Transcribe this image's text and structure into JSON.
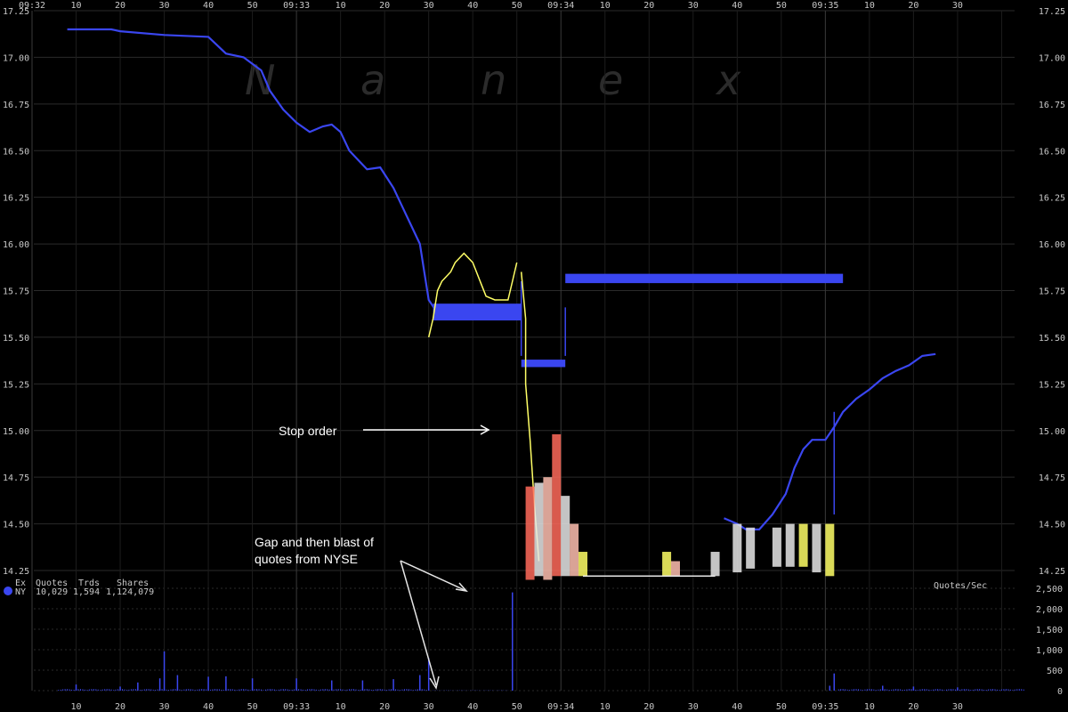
{
  "chart_data": {
    "type": "line",
    "watermark": [
      "N",
      "a",
      "n",
      "e",
      "x"
    ],
    "time_axis": {
      "top_labels": [
        "09:32",
        "10",
        "20",
        "30",
        "40",
        "50",
        "09:33",
        "10",
        "20",
        "30",
        "40",
        "50",
        "09:34",
        "10",
        "20",
        "30",
        "40",
        "50",
        "09:35",
        "10",
        "20",
        "30"
      ],
      "bottom_labels": [
        "10",
        "20",
        "30",
        "40",
        "50",
        "09:33",
        "10",
        "20",
        "30",
        "40",
        "50",
        "09:34",
        "10",
        "20",
        "30",
        "40",
        "50",
        "09:35",
        "10",
        "20",
        "30"
      ]
    },
    "price_axis": {
      "ticks": [
        "17.25",
        "17.00",
        "16.75",
        "16.50",
        "16.25",
        "16.00",
        "15.75",
        "15.50",
        "15.25",
        "15.00",
        "14.75",
        "14.50",
        "14.25"
      ],
      "ylim": [
        14.25,
        17.25
      ]
    },
    "volume_axis": {
      "label": "Quotes/Sec",
      "ticks": [
        "2,500",
        "2,000",
        "1,500",
        "1,000",
        "500",
        "0"
      ],
      "ylim": [
        0,
        2500
      ]
    },
    "legend": {
      "headers": [
        "Ex",
        "Quotes",
        "Trds",
        "Shares"
      ],
      "row": {
        "ex": "NY",
        "quotes": "10,029",
        "trds": "1,594",
        "shares": "1,124,079"
      },
      "color": "#3a46f0"
    },
    "colors": {
      "nbbo": "#3a46f0",
      "trades_yellow": "#ffff66",
      "trades_white": "#e6e6e6",
      "trades_red": "#ff6a5a",
      "trades_pink": "#ffc0b0",
      "volume": "#3a46f0",
      "grid": "#2a2a2a"
    },
    "series": [
      {
        "kind": "nbbo-line",
        "points": [
          [
            8,
            17.15
          ],
          [
            18,
            17.15
          ],
          [
            20,
            17.14
          ],
          [
            30,
            17.12
          ],
          [
            40,
            17.11
          ],
          [
            44,
            17.02
          ],
          [
            48,
            17.0
          ],
          [
            52,
            16.93
          ],
          [
            54,
            16.82
          ],
          [
            57,
            16.72
          ],
          [
            60,
            16.65
          ],
          [
            63,
            16.6
          ],
          [
            66,
            16.63
          ],
          [
            68,
            16.64
          ],
          [
            70,
            16.6
          ],
          [
            72,
            16.5
          ],
          [
            74,
            16.45
          ],
          [
            76,
            16.4
          ],
          [
            79,
            16.41
          ],
          [
            82,
            16.3
          ],
          [
            84,
            16.2
          ],
          [
            86,
            16.1
          ],
          [
            88,
            16.0
          ],
          [
            89,
            15.85
          ],
          [
            90,
            15.7
          ],
          [
            92,
            15.63
          ]
        ]
      },
      {
        "kind": "nbbo-line",
        "points": [
          [
            157,
            14.53
          ],
          [
            160,
            14.5
          ],
          [
            162,
            14.47
          ],
          [
            165,
            14.47
          ],
          [
            168,
            14.55
          ],
          [
            171,
            14.66
          ],
          [
            173,
            14.8
          ],
          [
            175,
            14.9
          ],
          [
            177,
            14.95
          ],
          [
            180,
            14.95
          ],
          [
            182,
            15.02
          ],
          [
            184,
            15.1
          ],
          [
            187,
            15.17
          ],
          [
            190,
            15.22
          ],
          [
            193,
            15.28
          ],
          [
            196,
            15.32
          ],
          [
            199,
            15.35
          ],
          [
            202,
            15.4
          ],
          [
            205,
            15.41
          ]
        ]
      },
      {
        "kind": "nbbo-block",
        "rects": [
          {
            "t0": 91,
            "t1": 111,
            "p0": 15.59,
            "p1": 15.68
          },
          {
            "t0": 111,
            "t1": 121,
            "p0": 15.34,
            "p1": 15.38
          },
          {
            "t0": 121,
            "t1": 184,
            "p0": 15.79,
            "p1": 15.84
          }
        ]
      },
      {
        "kind": "nbbo-spike",
        "lines": [
          [
            111,
            15.8,
            15.4
          ],
          [
            121,
            15.66,
            15.4
          ],
          [
            182,
            15.1,
            14.55
          ]
        ]
      },
      {
        "kind": "trades",
        "color": "#ffff66",
        "points": [
          [
            90,
            15.5
          ],
          [
            91,
            15.6
          ],
          [
            92,
            15.75
          ],
          [
            93,
            15.8
          ],
          [
            95,
            15.85
          ],
          [
            96,
            15.9
          ],
          [
            98,
            15.95
          ],
          [
            100,
            15.9
          ],
          [
            102,
            15.78
          ],
          [
            103,
            15.72
          ],
          [
            105,
            15.7
          ],
          [
            108,
            15.7
          ],
          [
            109,
            15.8
          ],
          [
            110,
            15.9
          ]
        ]
      },
      {
        "kind": "trades",
        "color": "#ffff66",
        "points": [
          [
            111,
            15.85
          ],
          [
            112,
            15.6
          ],
          [
            112,
            15.25
          ],
          [
            113,
            14.95
          ],
          [
            114,
            14.6
          ],
          [
            115,
            14.3
          ]
        ]
      },
      {
        "kind": "trade-band",
        "spans": [
          {
            "t": 113,
            "lo": 14.2,
            "hi": 14.7,
            "color": "#ff6a5a"
          },
          {
            "t": 115,
            "lo": 14.22,
            "hi": 14.72,
            "color": "#e6e6e6"
          },
          {
            "t": 117,
            "lo": 14.2,
            "hi": 14.75,
            "color": "#ffc0b0"
          },
          {
            "t": 119,
            "lo": 14.22,
            "hi": 14.98,
            "color": "#ff6a5a"
          },
          {
            "t": 121,
            "lo": 14.22,
            "hi": 14.65,
            "color": "#e6e6e6"
          },
          {
            "t": 123,
            "lo": 14.22,
            "hi": 14.5,
            "color": "#ffc0b0"
          },
          {
            "t": 125,
            "lo": 14.22,
            "hi": 14.35,
            "color": "#ffff66"
          },
          {
            "t": 144,
            "lo": 14.22,
            "hi": 14.35,
            "color": "#ffff66"
          },
          {
            "t": 146,
            "lo": 14.22,
            "hi": 14.3,
            "color": "#ffc0b0"
          },
          {
            "t": 155,
            "lo": 14.22,
            "hi": 14.35,
            "color": "#e6e6e6"
          },
          {
            "t": 160,
            "lo": 14.24,
            "hi": 14.5,
            "color": "#e6e6e6"
          },
          {
            "t": 163,
            "lo": 14.26,
            "hi": 14.48,
            "color": "#e6e6e6"
          },
          {
            "t": 169,
            "lo": 14.27,
            "hi": 14.48,
            "color": "#e6e6e6"
          },
          {
            "t": 172,
            "lo": 14.27,
            "hi": 14.5,
            "color": "#e6e6e6"
          },
          {
            "t": 175,
            "lo": 14.27,
            "hi": 14.5,
            "color": "#ffff66"
          },
          {
            "t": 178,
            "lo": 14.24,
            "hi": 14.5,
            "color": "#e6e6e6"
          },
          {
            "t": 181,
            "lo": 14.22,
            "hi": 14.5,
            "color": "#ffff66"
          }
        ]
      },
      {
        "kind": "trades",
        "color": "#e6e6e6",
        "points": [
          [
            125,
            14.22
          ],
          [
            128,
            14.22
          ],
          [
            132,
            14.22
          ],
          [
            136,
            14.22
          ],
          [
            140,
            14.22
          ],
          [
            144,
            14.22
          ],
          [
            148,
            14.22
          ],
          [
            152,
            14.22
          ],
          [
            155,
            14.22
          ]
        ]
      }
    ],
    "volume": {
      "spikes": [
        [
          10,
          150
        ],
        [
          20,
          100
        ],
        [
          24,
          200
        ],
        [
          29,
          300
        ],
        [
          30,
          960
        ],
        [
          33,
          380
        ],
        [
          40,
          340
        ],
        [
          44,
          350
        ],
        [
          50,
          300
        ],
        [
          60,
          300
        ],
        [
          68,
          250
        ],
        [
          75,
          250
        ],
        [
          82,
          280
        ],
        [
          88,
          380
        ],
        [
          90,
          800
        ],
        [
          109,
          2400
        ],
        [
          181,
          120
        ],
        [
          182,
          420
        ],
        [
          193,
          120
        ],
        [
          200,
          100
        ],
        [
          210,
          80
        ]
      ],
      "floor_segments": [
        [
          6,
          90,
          40
        ],
        [
          91,
          108,
          8
        ],
        [
          110,
          181,
          0
        ],
        [
          183,
          225,
          40
        ]
      ]
    },
    "annotations": [
      {
        "text": "Stop order"
      },
      {
        "text": "Gap and then blast of"
      },
      {
        "text": "quotes from NYSE"
      }
    ]
  }
}
